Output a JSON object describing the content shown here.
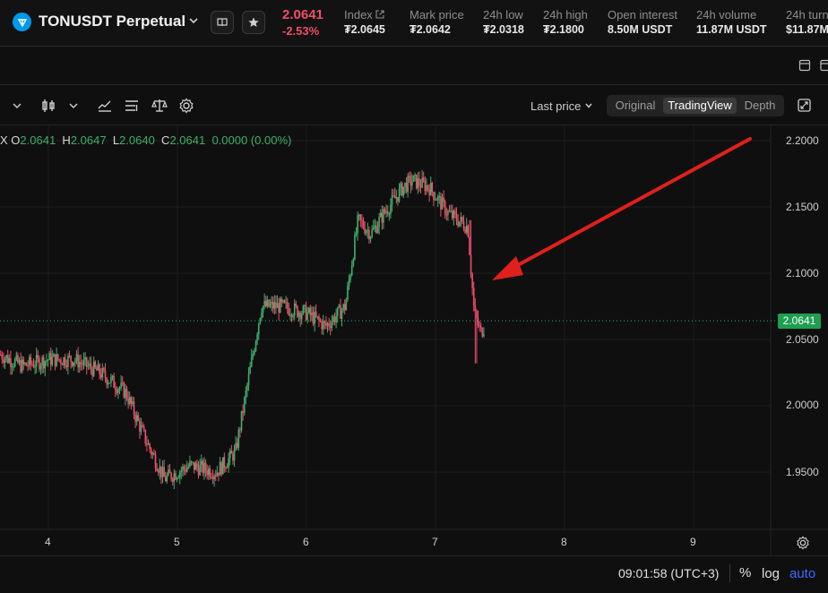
{
  "header": {
    "symbol": "TONUSDT Perpetual",
    "price": "2.0641",
    "change": "-2.53%",
    "stats": [
      {
        "label": "Index",
        "value": "₮2.0645"
      },
      {
        "label": "Mark price",
        "value": "₮2.0642"
      },
      {
        "label": "24h low",
        "value": "₮2.0318"
      },
      {
        "label": "24h high",
        "value": "₮2.1800"
      },
      {
        "label": "Open interest",
        "value": "8.50M USDT"
      },
      {
        "label": "24h volume",
        "value": "11.87M USDT"
      },
      {
        "label": "24h turn",
        "value": "$11.87M"
      }
    ],
    "icons": [
      "ton-coin-icon",
      "chevron-down-icon",
      "book-icon",
      "star-icon",
      "external-link-icon"
    ]
  },
  "toolbar": {
    "last_price_label": "Last price",
    "views": [
      "Original",
      "TradingView",
      "Depth"
    ],
    "active_view": "TradingView"
  },
  "ohlc": {
    "prefix": "X",
    "o_label": "O",
    "o": "2.0641",
    "h_label": "H",
    "h": "2.0647",
    "l_label": "L",
    "l": "2.0640",
    "c_label": "C",
    "c": "2.0641",
    "change": "0.0000 (0.00%)"
  },
  "colors": {
    "up": "#3fae6a",
    "down": "#ef4e6a",
    "annotation_arrow": "#e0201c",
    "price_tag": "#1f9e50",
    "accent": "#3d6bff"
  },
  "chart_data": {
    "type": "candlestick",
    "xlabel": "",
    "ylabel": "",
    "x_ticks": [
      "4",
      "5",
      "6",
      "7",
      "8",
      "9"
    ],
    "y_ticks": [
      "2.2000",
      "2.1500",
      "2.1000",
      "2.0500",
      "2.0000",
      "1.9500"
    ],
    "ylim": [
      1.93,
      2.205
    ],
    "xlim": [
      3.63,
      9.95
    ],
    "last_price": 2.0641,
    "last_price_label": "2.0641",
    "series": [
      {
        "x": [
          3.6,
          3.8,
          4.0,
          4.2,
          4.4,
          4.6,
          4.75,
          4.9,
          5.1,
          5.3,
          5.45,
          5.55,
          5.65,
          5.8,
          6.0,
          6.15,
          6.3,
          6.4,
          6.5,
          6.6,
          6.75,
          6.82,
          6.95,
          7.1,
          7.25,
          7.3,
          7.35,
          7.4
        ],
        "y": [
          2.04,
          2.03,
          2.035,
          2.035,
          2.025,
          2.01,
          1.975,
          1.945,
          1.955,
          1.95,
          1.965,
          2.02,
          2.075,
          2.075,
          2.07,
          2.06,
          2.075,
          2.14,
          2.13,
          2.145,
          2.165,
          2.17,
          2.165,
          2.145,
          2.135,
          2.07,
          2.055,
          2.064
        ]
      }
    ],
    "annotation": "arrow"
  },
  "footer": {
    "time": "09:01:58 (UTC+3)",
    "percent": "%",
    "log": "log",
    "auto": "auto"
  }
}
